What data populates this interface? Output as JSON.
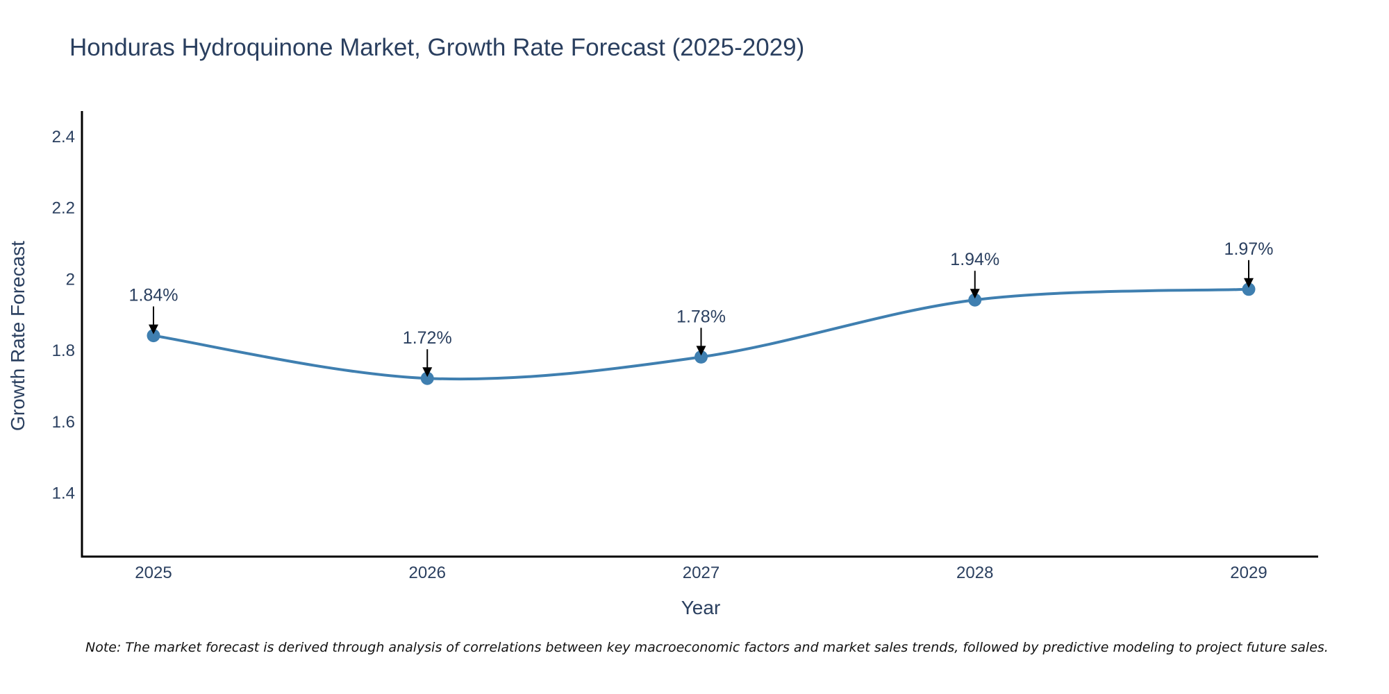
{
  "chart_data": {
    "type": "line",
    "title": "Honduras Hydroquinone Market, Growth Rate Forecast (2025-2029)",
    "xlabel": "Year",
    "ylabel": "Growth Rate Forecast",
    "categories": [
      "2025",
      "2026",
      "2027",
      "2028",
      "2029"
    ],
    "values": [
      1.84,
      1.72,
      1.78,
      1.94,
      1.97
    ],
    "data_labels": [
      "1.84%",
      "1.72%",
      "1.78%",
      "1.94%",
      "1.97%"
    ],
    "ylim": [
      1.22,
      2.47
    ],
    "y_ticks": [
      1.4,
      1.6,
      1.8,
      2,
      2.2,
      2.4
    ],
    "y_tick_labels": [
      "1.4",
      "1.6",
      "1.8",
      "2",
      "2.2",
      "2.4"
    ],
    "grid": false,
    "line_shape": "spline",
    "series_color": "#3f7fb0",
    "arrow_color": "#000000",
    "axis_color": "#000000",
    "text_color": "#2a3f5f"
  },
  "note": "Note: The market forecast is derived through analysis of correlations between key macroeconomic factors and market sales trends, followed by predictive modeling to project future sales."
}
